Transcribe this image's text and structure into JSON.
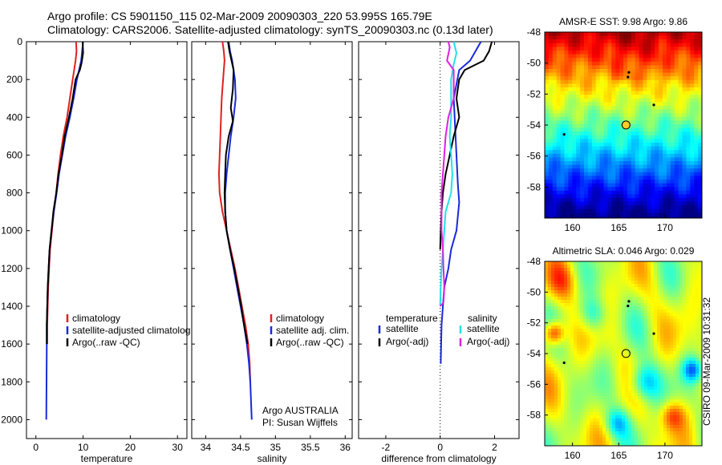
{
  "header": {
    "title_line1": "Argo profile: CS 5901150_115 02-Mar-2009 20090303_220 53.995S 165.79E",
    "title_line2": "Climatology: CARS2006. Satellite-adjusted climatology: synTS_20090303.nc (0.13d later)"
  },
  "colors": {
    "climatology": "#e02020",
    "satellite": "#1a2ad8",
    "argo": "#000000",
    "satellite_diff": "#22e0e8",
    "argo_adj": "#e020e0"
  },
  "chart_data": [
    {
      "type": "line",
      "name": "temperature",
      "xlabel": "temperature",
      "ylabel": "",
      "xlim": [
        -2,
        32
      ],
      "ylim": [
        0,
        2100
      ],
      "y_inverted": true,
      "xticks": [
        0,
        10,
        20,
        30
      ],
      "yticks": [
        0,
        200,
        400,
        600,
        800,
        1000,
        1200,
        1400,
        1600,
        1800,
        2000
      ],
      "legend": {
        "position": "lower-right",
        "entries": [
          "climatology",
          "satellite-adjusted climatolog",
          "Argo(..raw -QC)"
        ]
      },
      "series": [
        {
          "name": "climatology",
          "color_key": "climatology",
          "points": [
            [
              8.5,
              0
            ],
            [
              8.6,
              50
            ],
            [
              8.4,
              100
            ],
            [
              7.8,
              200
            ],
            [
              7.2,
              300
            ],
            [
              6.6,
              400
            ],
            [
              5.8,
              500
            ],
            [
              5.2,
              600
            ],
            [
              4.7,
              700
            ],
            [
              4.3,
              800
            ],
            [
              3.8,
              900
            ],
            [
              3.4,
              1000
            ],
            [
              3.0,
              1100
            ],
            [
              2.8,
              1200
            ],
            [
              2.6,
              1300
            ],
            [
              2.5,
              1400
            ],
            [
              2.4,
              1500
            ],
            [
              2.4,
              1600
            ]
          ]
        },
        {
          "name": "satellite-adjusted climatolog",
          "color_key": "satellite",
          "points": [
            [
              10.0,
              0
            ],
            [
              9.8,
              50
            ],
            [
              9.6,
              100
            ],
            [
              8.7,
              200
            ],
            [
              8.0,
              300
            ],
            [
              7.2,
              400
            ],
            [
              6.3,
              500
            ],
            [
              5.6,
              600
            ],
            [
              4.9,
              700
            ],
            [
              4.4,
              800
            ],
            [
              3.8,
              900
            ],
            [
              3.3,
              1000
            ],
            [
              2.9,
              1100
            ],
            [
              2.7,
              1200
            ],
            [
              2.5,
              1300
            ],
            [
              2.4,
              1400
            ],
            [
              2.3,
              1500
            ],
            [
              2.3,
              1600
            ],
            [
              2.25,
              1800
            ],
            [
              2.2,
              2000
            ]
          ]
        },
        {
          "name": "Argo(..raw -QC)",
          "color_key": "argo",
          "points": [
            [
              9.9,
              0
            ],
            [
              10.0,
              60
            ],
            [
              9.7,
              110
            ],
            [
              9.3,
              150
            ],
            [
              8.4,
              200
            ],
            [
              7.8,
              300
            ],
            [
              7.0,
              400
            ],
            [
              6.1,
              500
            ],
            [
              5.5,
              600
            ],
            [
              4.8,
              700
            ],
            [
              4.3,
              800
            ],
            [
              3.7,
              900
            ],
            [
              3.3,
              1000
            ],
            [
              2.9,
              1100
            ],
            [
              2.7,
              1200
            ],
            [
              2.5,
              1300
            ],
            [
              2.4,
              1400
            ],
            [
              2.3,
              1500
            ],
            [
              2.3,
              1600
            ]
          ]
        }
      ]
    },
    {
      "type": "line",
      "name": "salinity",
      "xlabel": "salinity",
      "ylabel": "",
      "xlim": [
        33.8,
        36.1
      ],
      "ylim": [
        0,
        2100
      ],
      "y_inverted": true,
      "xticks": [
        34,
        34.5,
        35,
        35.5,
        36
      ],
      "yticks": [
        0,
        200,
        400,
        600,
        800,
        1000,
        1200,
        1400,
        1600,
        1800,
        2000
      ],
      "legend": {
        "position": "lower-right",
        "entries": [
          "climatology",
          "satellite adj. clim.",
          "Argo(..raw -QC)"
        ]
      },
      "annotation": [
        "Argo AUSTRALIA",
        "PI: Susan Wijffels"
      ],
      "series": [
        {
          "name": "climatology",
          "color_key": "climatology",
          "points": [
            [
              34.24,
              0
            ],
            [
              34.26,
              50
            ],
            [
              34.27,
              100
            ],
            [
              34.25,
              200
            ],
            [
              34.23,
              300
            ],
            [
              34.22,
              400
            ],
            [
              34.21,
              500
            ],
            [
              34.2,
              600
            ],
            [
              34.19,
              700
            ],
            [
              34.2,
              800
            ],
            [
              34.24,
              900
            ],
            [
              34.3,
              1000
            ],
            [
              34.36,
              1100
            ],
            [
              34.42,
              1200
            ],
            [
              34.47,
              1300
            ],
            [
              34.52,
              1400
            ],
            [
              34.57,
              1500
            ],
            [
              34.61,
              1600
            ],
            [
              34.63,
              1700
            ],
            [
              34.64,
              1800
            ]
          ]
        },
        {
          "name": "satellite adj. clim.",
          "color_key": "satellite",
          "points": [
            [
              34.33,
              0
            ],
            [
              34.35,
              50
            ],
            [
              34.38,
              100
            ],
            [
              34.42,
              200
            ],
            [
              34.43,
              300
            ],
            [
              34.4,
              400
            ],
            [
              34.36,
              500
            ],
            [
              34.33,
              600
            ],
            [
              34.3,
              700
            ],
            [
              34.28,
              800
            ],
            [
              34.28,
              900
            ],
            [
              34.3,
              1000
            ],
            [
              34.35,
              1100
            ],
            [
              34.4,
              1200
            ],
            [
              34.45,
              1300
            ],
            [
              34.5,
              1400
            ],
            [
              34.55,
              1500
            ],
            [
              34.59,
              1600
            ],
            [
              34.62,
              1700
            ],
            [
              34.64,
              1800
            ],
            [
              34.66,
              2000
            ]
          ]
        },
        {
          "name": "Argo(..raw -QC)",
          "color_key": "argo",
          "points": [
            [
              34.32,
              0
            ],
            [
              34.34,
              50
            ],
            [
              34.37,
              100
            ],
            [
              34.4,
              150
            ],
            [
              34.39,
              250
            ],
            [
              34.36,
              350
            ],
            [
              34.39,
              420
            ],
            [
              34.33,
              500
            ],
            [
              34.29,
              600
            ],
            [
              34.28,
              700
            ],
            [
              34.27,
              800
            ],
            [
              34.28,
              900
            ],
            [
              34.3,
              1000
            ],
            [
              34.35,
              1100
            ],
            [
              34.41,
              1200
            ],
            [
              34.46,
              1300
            ],
            [
              34.51,
              1400
            ],
            [
              34.55,
              1500
            ],
            [
              34.6,
              1600
            ]
          ]
        }
      ]
    },
    {
      "type": "line",
      "name": "difference from climatology",
      "xlabel": "difference from climatology",
      "ylabel": "",
      "xlim": [
        -3,
        2.9
      ],
      "ylim": [
        0,
        2100
      ],
      "y_inverted": true,
      "xticks": [
        -2,
        0,
        2
      ],
      "yticks": [
        0,
        200,
        400,
        600,
        800,
        1000,
        1200,
        1400,
        1600,
        1800,
        2000
      ],
      "zero_line": "dotted",
      "legend": {
        "position": "lower",
        "titles": [
          "temperature",
          "salinity"
        ],
        "entries": [
          "satellite",
          "Argo(-adj)",
          "satellite",
          "Argo(-adj)"
        ]
      },
      "series": [
        {
          "name": "temperature satellite",
          "color_key": "satellite",
          "points": [
            [
              1.5,
              0
            ],
            [
              1.3,
              50
            ],
            [
              1.1,
              100
            ],
            [
              0.7,
              150
            ],
            [
              0.5,
              300
            ],
            [
              0.55,
              450
            ],
            [
              0.6,
              600
            ],
            [
              0.65,
              750
            ],
            [
              0.7,
              850
            ],
            [
              0.6,
              1000
            ],
            [
              0.4,
              1100
            ],
            [
              0.3,
              1200
            ],
            [
              0.15,
              1300
            ],
            [
              0.05,
              1500
            ],
            [
              0.02,
              1700
            ],
            [
              0,
              1700
            ]
          ]
        },
        {
          "name": "temperature Argo(-adj)",
          "color_key": "argo",
          "points": [
            [
              1.9,
              0
            ],
            [
              1.8,
              50
            ],
            [
              1.6,
              100
            ],
            [
              0.9,
              150
            ],
            [
              0.7,
              200
            ],
            [
              0.6,
              300
            ],
            [
              0.7,
              400
            ],
            [
              0.5,
              500
            ],
            [
              0.35,
              600
            ],
            [
              0.2,
              700
            ],
            [
              0.1,
              800
            ],
            [
              0.05,
              900
            ],
            [
              0.02,
              1000
            ],
            [
              0.0,
              1100
            ]
          ]
        },
        {
          "name": "salinity satellite",
          "color_key": "satellite_diff",
          "points": [
            [
              0.5,
              0
            ],
            [
              0.6,
              60
            ],
            [
              0.5,
              120
            ],
            [
              0.4,
              200
            ],
            [
              0.4,
              400
            ],
            [
              0.35,
              500
            ],
            [
              0.4,
              600
            ],
            [
              0.45,
              700
            ],
            [
              0.4,
              800
            ],
            [
              0.2,
              900
            ],
            [
              0.15,
              1000
            ],
            [
              0.1,
              1100
            ],
            [
              0.05,
              1200
            ],
            [
              0.02,
              1300
            ],
            [
              0.0,
              1400
            ]
          ]
        },
        {
          "name": "salinity Argo(-adj)",
          "color_key": "argo_adj",
          "points": [
            [
              0.3,
              0
            ],
            [
              0.35,
              30
            ],
            [
              0.25,
              100
            ],
            [
              0.5,
              150
            ],
            [
              0.5,
              300
            ],
            [
              0.3,
              400
            ],
            [
              0.2,
              500
            ],
            [
              0.15,
              600
            ],
            [
              0.1,
              700
            ],
            [
              0.05,
              800
            ],
            [
              0.05,
              1000
            ],
            [
              0.1,
              1100
            ],
            [
              0.12,
              1200
            ],
            [
              0.15,
              1300
            ],
            [
              0.12,
              1380
            ],
            [
              0.0,
              1400
            ]
          ]
        }
      ]
    },
    {
      "type": "heatmap",
      "name": "sst-map",
      "title": "AMSR-E SST: 9.98 Argo: 9.86",
      "xlim": [
        157,
        174
      ],
      "ylim": [
        -60,
        -48
      ],
      "xticks": [
        160,
        165,
        170
      ],
      "yticks": [
        -48,
        -50,
        -52,
        -54,
        -56,
        -58
      ],
      "colormap": "jet",
      "marker": {
        "lon": 165.79,
        "lat": -53.995
      }
    },
    {
      "type": "heatmap",
      "name": "sla-map",
      "title": "Altimetric SLA: 0.046 Argo: 0.029",
      "xlim": [
        157,
        174
      ],
      "ylim": [
        -60,
        -48
      ],
      "xticks": [
        160,
        165,
        170
      ],
      "yticks": [
        -48,
        -50,
        -52,
        -54,
        -56,
        -58
      ],
      "colormap": "jet",
      "marker": {
        "lon": 165.79,
        "lat": -53.995
      },
      "side_label": "CSIRO 09-Mar-2009 10:31:32"
    }
  ]
}
